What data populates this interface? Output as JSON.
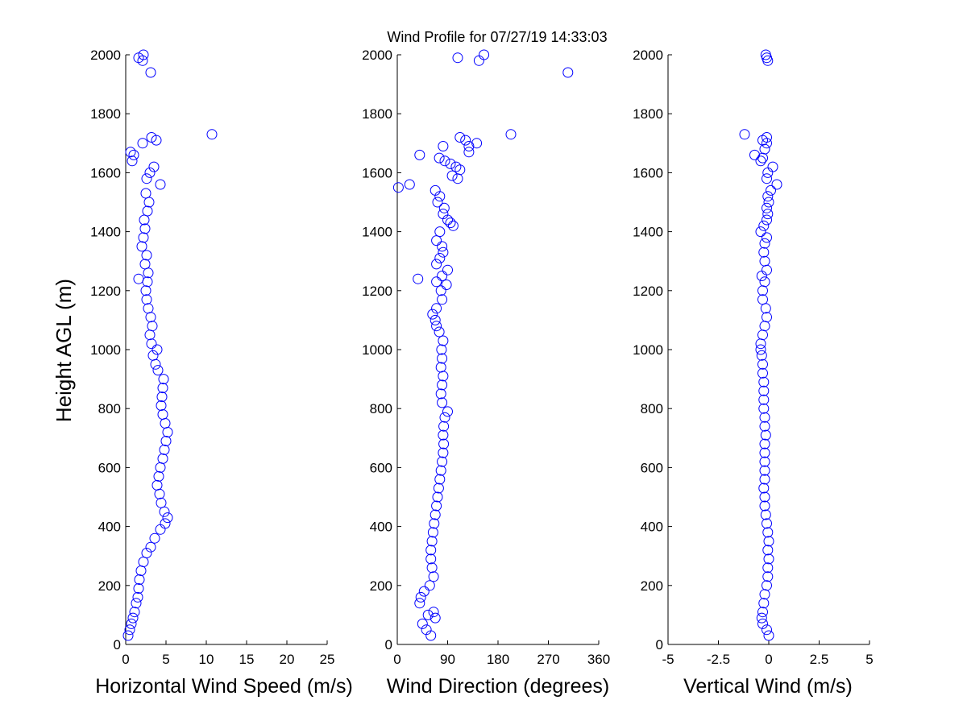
{
  "chart_data": {
    "type": "scatter",
    "title": "Wind Profile for  07/27/19 14:33:03",
    "ylabel": "Height AGL (m)",
    "ylim": [
      0,
      2000
    ],
    "yticks": [
      "0",
      "200",
      "400",
      "600",
      "800",
      "1000",
      "1200",
      "1400",
      "1600",
      "1800",
      "2000"
    ],
    "marker": "open-circle",
    "marker_color": "#0000ff",
    "grid": false,
    "panels": [
      {
        "xlabel": "Horizontal Wind Speed (m/s)",
        "xlim": [
          0,
          25
        ],
        "xticks": [
          "0",
          "5",
          "10",
          "15",
          "20",
          "25"
        ],
        "points": [
          [
            0.3,
            30
          ],
          [
            0.5,
            50
          ],
          [
            0.7,
            70
          ],
          [
            0.9,
            90
          ],
          [
            1.1,
            110
          ],
          [
            1.3,
            140
          ],
          [
            1.5,
            160
          ],
          [
            1.6,
            190
          ],
          [
            1.7,
            220
          ],
          [
            1.9,
            250
          ],
          [
            2.2,
            280
          ],
          [
            2.6,
            310
          ],
          [
            3.1,
            330
          ],
          [
            3.6,
            360
          ],
          [
            4.3,
            390
          ],
          [
            4.9,
            410
          ],
          [
            5.2,
            430
          ],
          [
            4.8,
            450
          ],
          [
            4.4,
            480
          ],
          [
            4.2,
            510
          ],
          [
            3.9,
            540
          ],
          [
            4.1,
            570
          ],
          [
            4.3,
            600
          ],
          [
            4.6,
            630
          ],
          [
            4.8,
            660
          ],
          [
            5.0,
            690
          ],
          [
            5.2,
            720
          ],
          [
            4.9,
            750
          ],
          [
            4.6,
            780
          ],
          [
            4.4,
            810
          ],
          [
            4.5,
            840
          ],
          [
            4.6,
            870
          ],
          [
            4.7,
            900
          ],
          [
            4.0,
            930
          ],
          [
            3.7,
            950
          ],
          [
            3.4,
            980
          ],
          [
            3.9,
            1000
          ],
          [
            3.2,
            1020
          ],
          [
            3.0,
            1050
          ],
          [
            3.3,
            1080
          ],
          [
            3.1,
            1110
          ],
          [
            2.8,
            1140
          ],
          [
            2.6,
            1170
          ],
          [
            2.5,
            1200
          ],
          [
            2.7,
            1230
          ],
          [
            1.6,
            1240
          ],
          [
            2.8,
            1260
          ],
          [
            2.4,
            1290
          ],
          [
            2.6,
            1320
          ],
          [
            2.0,
            1350
          ],
          [
            2.2,
            1380
          ],
          [
            2.4,
            1410
          ],
          [
            2.3,
            1440
          ],
          [
            2.7,
            1470
          ],
          [
            2.9,
            1500
          ],
          [
            2.5,
            1530
          ],
          [
            4.3,
            1560
          ],
          [
            2.6,
            1580
          ],
          [
            3.0,
            1600
          ],
          [
            3.5,
            1620
          ],
          [
            0.8,
            1640
          ],
          [
            1.0,
            1660
          ],
          [
            0.6,
            1670
          ],
          [
            2.1,
            1700
          ],
          [
            3.8,
            1710
          ],
          [
            3.2,
            1720
          ],
          [
            10.7,
            1730
          ],
          [
            3.1,
            1940
          ],
          [
            2.1,
            1980
          ],
          [
            1.6,
            1990
          ],
          [
            2.2,
            2000
          ]
        ]
      },
      {
        "xlabel": "Wind Direction (degrees)",
        "xlim": [
          0,
          360
        ],
        "xticks": [
          "0",
          "90",
          "180",
          "270",
          "360"
        ],
        "points": [
          [
            60,
            30
          ],
          [
            52,
            50
          ],
          [
            45,
            70
          ],
          [
            68,
            90
          ],
          [
            55,
            100
          ],
          [
            65,
            110
          ],
          [
            40,
            140
          ],
          [
            42,
            160
          ],
          [
            48,
            180
          ],
          [
            58,
            200
          ],
          [
            65,
            230
          ],
          [
            62,
            260
          ],
          [
            60,
            290
          ],
          [
            60,
            320
          ],
          [
            62,
            350
          ],
          [
            64,
            380
          ],
          [
            66,
            410
          ],
          [
            68,
            440
          ],
          [
            70,
            470
          ],
          [
            72,
            500
          ],
          [
            74,
            530
          ],
          [
            76,
            560
          ],
          [
            78,
            590
          ],
          [
            80,
            620
          ],
          [
            82,
            650
          ],
          [
            83,
            680
          ],
          [
            82,
            710
          ],
          [
            83,
            740
          ],
          [
            85,
            770
          ],
          [
            90,
            790
          ],
          [
            80,
            820
          ],
          [
            78,
            850
          ],
          [
            80,
            880
          ],
          [
            82,
            910
          ],
          [
            78,
            940
          ],
          [
            80,
            970
          ],
          [
            79,
            1000
          ],
          [
            82,
            1030
          ],
          [
            75,
            1060
          ],
          [
            70,
            1080
          ],
          [
            68,
            1100
          ],
          [
            63,
            1120
          ],
          [
            70,
            1140
          ],
          [
            80,
            1170
          ],
          [
            78,
            1200
          ],
          [
            88,
            1220
          ],
          [
            70,
            1230
          ],
          [
            37,
            1240
          ],
          [
            80,
            1250
          ],
          [
            90,
            1270
          ],
          [
            70,
            1290
          ],
          [
            76,
            1310
          ],
          [
            82,
            1330
          ],
          [
            80,
            1350
          ],
          [
            70,
            1370
          ],
          [
            76,
            1400
          ],
          [
            100,
            1420
          ],
          [
            90,
            1440
          ],
          [
            95,
            1430
          ],
          [
            82,
            1460
          ],
          [
            84,
            1480
          ],
          [
            72,
            1500
          ],
          [
            76,
            1520
          ],
          [
            68,
            1540
          ],
          [
            2,
            1550
          ],
          [
            22,
            1560
          ],
          [
            108,
            1580
          ],
          [
            98,
            1590
          ],
          [
            112,
            1610
          ],
          [
            105,
            1620
          ],
          [
            95,
            1630
          ],
          [
            85,
            1640
          ],
          [
            75,
            1650
          ],
          [
            40,
            1660
          ],
          [
            128,
            1670
          ],
          [
            128,
            1690
          ],
          [
            82,
            1690
          ],
          [
            142,
            1700
          ],
          [
            122,
            1710
          ],
          [
            112,
            1720
          ],
          [
            203,
            1730
          ],
          [
            305,
            1940
          ],
          [
            146,
            1980
          ],
          [
            108,
            1990
          ],
          [
            155,
            2000
          ]
        ]
      },
      {
        "xlabel": "Vertical Wind (m/s)",
        "xlim": [
          -5,
          5
        ],
        "xticks": [
          "-5",
          "-2.5",
          "0",
          "2.5",
          "5"
        ],
        "points": [
          [
            0.0,
            30
          ],
          [
            -0.1,
            50
          ],
          [
            -0.3,
            70
          ],
          [
            -0.35,
            90
          ],
          [
            -0.3,
            110
          ],
          [
            -0.25,
            140
          ],
          [
            -0.2,
            170
          ],
          [
            -0.1,
            200
          ],
          [
            -0.05,
            230
          ],
          [
            -0.05,
            260
          ],
          [
            0.0,
            290
          ],
          [
            -0.05,
            320
          ],
          [
            0.0,
            350
          ],
          [
            -0.05,
            380
          ],
          [
            -0.1,
            410
          ],
          [
            -0.15,
            440
          ],
          [
            -0.2,
            470
          ],
          [
            -0.2,
            500
          ],
          [
            -0.25,
            530
          ],
          [
            -0.2,
            560
          ],
          [
            -0.2,
            590
          ],
          [
            -0.2,
            620
          ],
          [
            -0.2,
            650
          ],
          [
            -0.2,
            680
          ],
          [
            -0.15,
            710
          ],
          [
            -0.2,
            740
          ],
          [
            -0.2,
            770
          ],
          [
            -0.25,
            800
          ],
          [
            -0.25,
            830
          ],
          [
            -0.25,
            860
          ],
          [
            -0.25,
            890
          ],
          [
            -0.3,
            920
          ],
          [
            -0.3,
            950
          ],
          [
            -0.35,
            980
          ],
          [
            -0.4,
            1000
          ],
          [
            -0.4,
            1020
          ],
          [
            -0.3,
            1050
          ],
          [
            -0.2,
            1080
          ],
          [
            -0.1,
            1110
          ],
          [
            -0.15,
            1140
          ],
          [
            -0.3,
            1170
          ],
          [
            -0.3,
            1200
          ],
          [
            -0.2,
            1230
          ],
          [
            -0.35,
            1250
          ],
          [
            -0.1,
            1270
          ],
          [
            -0.2,
            1300
          ],
          [
            -0.25,
            1330
          ],
          [
            -0.2,
            1360
          ],
          [
            -0.1,
            1380
          ],
          [
            -0.4,
            1400
          ],
          [
            -0.25,
            1420
          ],
          [
            -0.1,
            1440
          ],
          [
            -0.05,
            1460
          ],
          [
            -0.1,
            1480
          ],
          [
            0.0,
            1500
          ],
          [
            -0.05,
            1520
          ],
          [
            0.1,
            1540
          ],
          [
            0.4,
            1560
          ],
          [
            -0.1,
            1580
          ],
          [
            -0.05,
            1600
          ],
          [
            0.2,
            1620
          ],
          [
            -0.4,
            1640
          ],
          [
            -0.3,
            1650
          ],
          [
            -0.7,
            1660
          ],
          [
            -0.2,
            1680
          ],
          [
            -0.1,
            1700
          ],
          [
            -0.3,
            1710
          ],
          [
            -0.1,
            1720
          ],
          [
            -1.2,
            1730
          ],
          [
            -0.05,
            1980
          ],
          [
            -0.1,
            1990
          ],
          [
            -0.15,
            2000
          ]
        ]
      }
    ]
  }
}
